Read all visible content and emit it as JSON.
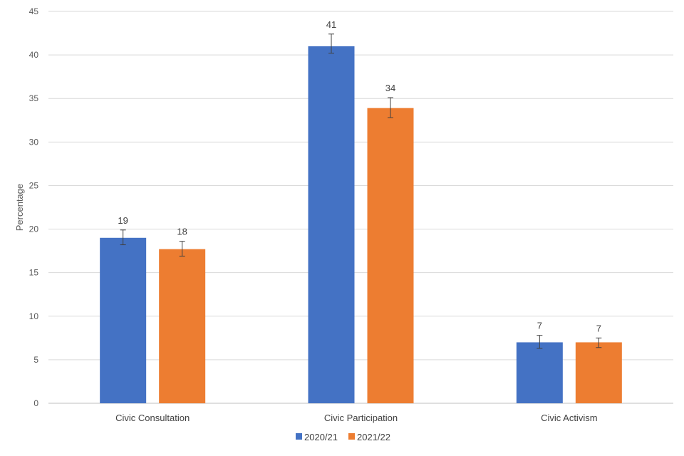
{
  "chart_data": {
    "type": "bar",
    "title": "",
    "xlabel": "",
    "ylabel": "Percentage",
    "ylim": [
      0,
      45
    ],
    "yticks": [
      0,
      5,
      10,
      15,
      20,
      25,
      30,
      35,
      40,
      45
    ],
    "grid": true,
    "legend_position": "bottom",
    "categories": [
      "Civic Consultation",
      "Civic Participation",
      "Civic Activism"
    ],
    "series": [
      {
        "name": "2020/21",
        "color": "#4472c4",
        "values": [
          19,
          41,
          7
        ],
        "error_low": [
          18.2,
          40.2,
          6.3
        ],
        "error_high": [
          19.9,
          42.4,
          7.8
        ],
        "labels": [
          "19",
          "41",
          "7"
        ]
      },
      {
        "name": "2021/22",
        "color": "#ed7d31",
        "values": [
          17.7,
          33.9,
          7.0
        ],
        "error_low": [
          16.9,
          32.8,
          6.4
        ],
        "error_high": [
          18.6,
          35.1,
          7.5
        ],
        "labels": [
          "18",
          "34",
          "7"
        ]
      }
    ]
  }
}
